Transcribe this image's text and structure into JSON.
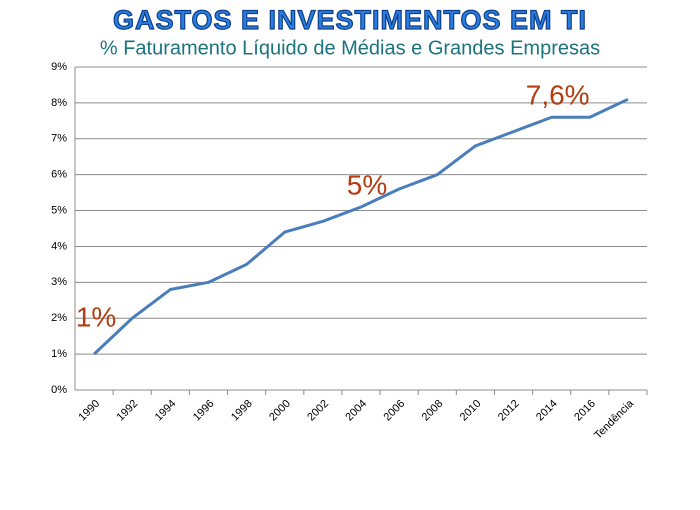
{
  "chart_data": {
    "type": "line",
    "title": "GASTOS E INVESTIMENTOS EM TI",
    "subtitle": "% Faturamento Líquido de Médias e Grandes Empresas",
    "categories": [
      "1990",
      "1992",
      "1994",
      "1996",
      "1998",
      "2000",
      "2002",
      "2004",
      "2006",
      "2008",
      "2010",
      "2012",
      "2014",
      "2016",
      "Tendência"
    ],
    "series": [
      {
        "name": "Gastos e investimentos em TI",
        "color": "#4a7ebb",
        "values": [
          1.0,
          2.0,
          2.8,
          3.0,
          3.5,
          4.4,
          4.7,
          5.1,
          5.6,
          6.0,
          6.8,
          7.2,
          7.6,
          7.6,
          8.1
        ]
      }
    ],
    "ylim": [
      0,
      9
    ],
    "yticks": [
      {
        "value": 0,
        "label": "0%"
      },
      {
        "value": 1,
        "label": "1%"
      },
      {
        "value": 2,
        "label": "2%"
      },
      {
        "value": 3,
        "label": "3%"
      },
      {
        "value": 4,
        "label": "4%"
      },
      {
        "value": 5,
        "label": "5%"
      },
      {
        "value": 6,
        "label": "6%"
      },
      {
        "value": 7,
        "label": "7%"
      },
      {
        "value": 8,
        "label": "8%"
      },
      {
        "value": 9,
        "label": "9%"
      }
    ],
    "grid": true,
    "annotations": [
      {
        "text": "1%",
        "category": "1990"
      },
      {
        "text": "5%",
        "category": "2004"
      },
      {
        "text": "7,6%",
        "category": "2014"
      }
    ]
  }
}
